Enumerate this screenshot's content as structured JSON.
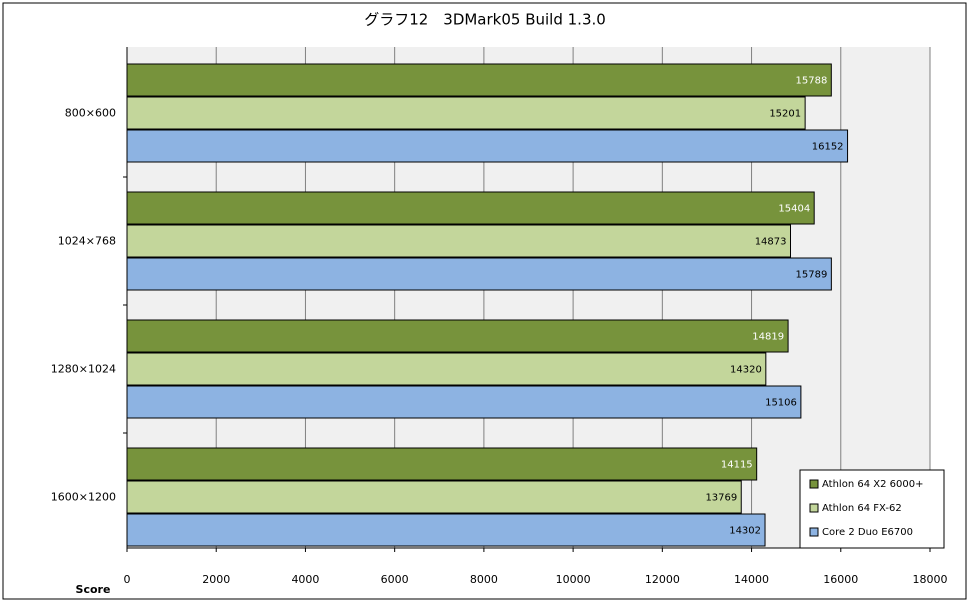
{
  "chart_data": {
    "type": "bar",
    "orientation": "horizontal",
    "title": "グラフ12　3DMark05 Build 1.3.0",
    "x_label": "Score",
    "categories": [
      "800×600",
      "1024×768",
      "1280×1024",
      "1600×1200"
    ],
    "series": [
      {
        "name": "Athlon 64 X2 6000+",
        "color": "#77933c",
        "values": [
          15788,
          15404,
          14819,
          14115
        ]
      },
      {
        "name": "Athlon 64 FX-62",
        "color": "#c3d69b",
        "values": [
          15201,
          14873,
          14320,
          13769
        ]
      },
      {
        "name": "Core 2 Duo E6700",
        "color": "#8db3e2",
        "values": [
          16152,
          15789,
          15106,
          14302
        ]
      }
    ],
    "xlim": [
      0,
      18000
    ],
    "xticks": [
      0,
      2000,
      4000,
      6000,
      8000,
      10000,
      12000,
      14000,
      16000,
      18000
    ],
    "grid": true,
    "legend": "bottom-right"
  }
}
